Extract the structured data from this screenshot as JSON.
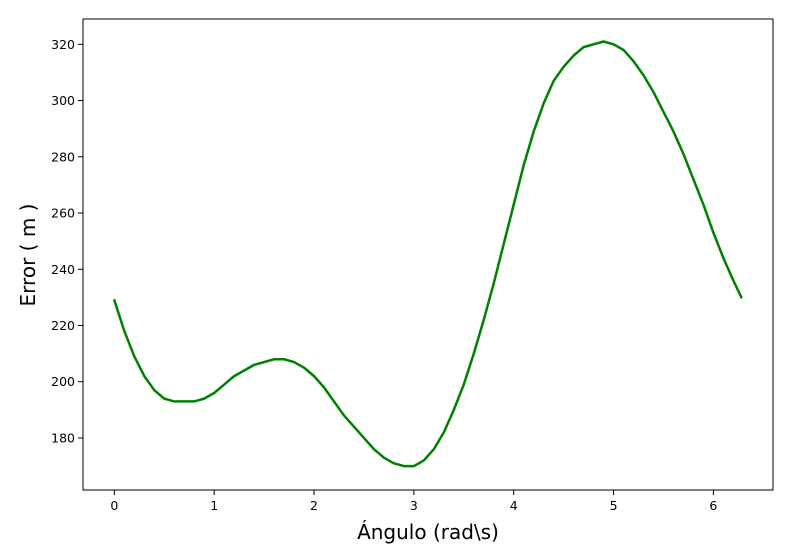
{
  "chart_data": {
    "type": "line",
    "title": "",
    "xlabel": "Ángulo (rad\\s)",
    "ylabel": "Error ( m )",
    "xlim": [
      -0.314,
      6.597
    ],
    "ylim": [
      161.5,
      329
    ],
    "grid": false,
    "legend": "none",
    "x_ticks": [
      0,
      1,
      2,
      3,
      4,
      5,
      6
    ],
    "y_ticks": [
      180,
      200,
      220,
      240,
      260,
      280,
      300,
      320
    ],
    "series": [
      {
        "color": "#008000",
        "x": [
          0.0,
          0.1,
          0.2,
          0.3,
          0.4,
          0.5,
          0.6,
          0.7,
          0.8,
          0.9,
          1.0,
          1.1,
          1.2,
          1.3,
          1.4,
          1.5,
          1.6,
          1.7,
          1.8,
          1.9,
          2.0,
          2.1,
          2.2,
          2.3,
          2.4,
          2.5,
          2.6,
          2.7,
          2.8,
          2.9,
          3.0,
          3.1,
          3.2,
          3.3,
          3.4,
          3.5,
          3.6,
          3.7,
          3.8,
          3.9,
          4.0,
          4.1,
          4.2,
          4.3,
          4.4,
          4.5,
          4.6,
          4.7,
          4.8,
          4.9,
          5.0,
          5.1,
          5.2,
          5.3,
          5.4,
          5.5,
          5.6,
          5.7,
          5.8,
          5.9,
          6.0,
          6.1,
          6.2,
          6.28
        ],
        "y": [
          229,
          218,
          209,
          202,
          197,
          194,
          193,
          193,
          193,
          194,
          196,
          199,
          202,
          204,
          206,
          207,
          208,
          208,
          207,
          205,
          202,
          198,
          193,
          188,
          184,
          180,
          176,
          173,
          171,
          170,
          170,
          172,
          176,
          182,
          190,
          199,
          210,
          222,
          235,
          249,
          263,
          277,
          289,
          299,
          307,
          312,
          316,
          319,
          320,
          321,
          320,
          318,
          314,
          309,
          303,
          296,
          289,
          281,
          272,
          263,
          253,
          244,
          236,
          230
        ]
      }
    ]
  }
}
